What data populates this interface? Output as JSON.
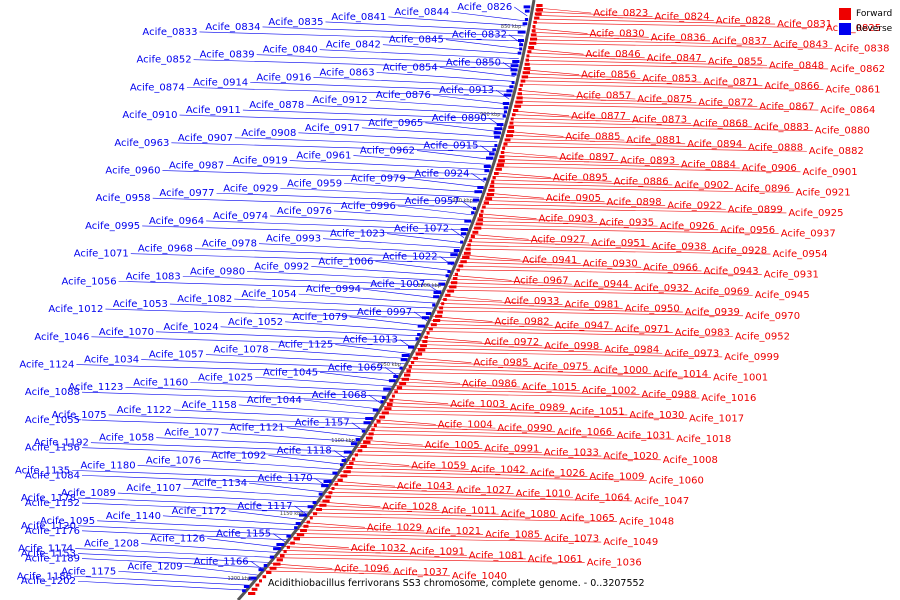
{
  "legend": {
    "forward_label": "Forward",
    "reverse_label": "Reverse",
    "forward_color": "#ee0000",
    "reverse_color": "#0000ee"
  },
  "caption": "Acidithiobacillus ferrivorans SS3 chromosome, complete genome. - 0..3207552",
  "ticks": [
    "850 kbp",
    "900 kbp",
    "950 kbp",
    "1000 kbp",
    "1050 kbp",
    "1100 kbp",
    "1150 kbp",
    "1200 kbp"
  ],
  "reverse_labels": [
    "Acife_0826",
    "Acife_0844",
    "Acife_0841",
    "Acife_0835",
    "Acife_0834",
    "Acife_0833",
    "Acife_0832",
    "Acife_0845",
    "Acife_0842",
    "Acife_0840",
    "Acife_0839",
    "Acife_0852",
    "Acife_0850",
    "Acife_0854",
    "Acife_0863",
    "Acife_0916",
    "Acife_0914",
    "Acife_0874",
    "Acife_0913",
    "Acife_0876",
    "Acife_0912",
    "Acife_0878",
    "Acife_0911",
    "Acife_0910",
    "Acife_0890",
    "Acife_0965",
    "Acife_0917",
    "Acife_0908",
    "Acife_0907",
    "Acife_0963",
    "Acife_0915",
    "Acife_0962",
    "Acife_0961",
    "Acife_0919",
    "Acife_0987",
    "Acife_0960",
    "Acife_0924",
    "Acife_0979",
    "Acife_0959",
    "Acife_0929",
    "Acife_0977",
    "Acife_0958",
    "Acife_0957",
    "Acife_0996",
    "Acife_0976",
    "Acife_0974",
    "Acife_0964",
    "Acife_0995",
    "Acife_1072",
    "Acife_1023",
    "Acife_0993",
    "Acife_0978",
    "Acife_0968",
    "Acife_1071",
    "Acife_1022",
    "Acife_1006",
    "Acife_0992",
    "Acife_0980",
    "Acife_1083",
    "Acife_1056",
    "Acife_1007",
    "Acife_0994",
    "Acife_1054",
    "Acife_1082",
    "Acife_1053",
    "Acife_1012",
    "Acife_0997",
    "Acife_1079",
    "Acife_1052",
    "Acife_1024",
    "Acife_1070",
    "Acife_1046",
    "Acife_1013",
    "Acife_1125",
    "Acife_1078",
    "Acife_1057",
    "Acife_1034",
    "Acife_1124",
    "Acife_1069",
    "Acife_1045",
    "Acife_1025",
    "Acife_1160",
    "Acife_1123",
    "Acife_1088",
    "Acife_1068",
    "Acife_1044",
    "Acife_1158",
    "Acife_1122",
    "Acife_1075",
    "Acife_1055",
    "Acife_1157",
    "Acife_1121",
    "Acife_1077",
    "Acife_1058",
    "Acife_1192",
    "Acife_1156",
    "Acife_1118",
    "Acife_1092",
    "Acife_1076",
    "Acife_1180",
    "Acife_1135",
    "Acife_1084",
    "Acife_1170",
    "Acife_1134",
    "Acife_1107",
    "Acife_1089",
    "Acife_1178",
    "Acife_1152",
    "Acife_1117",
    "Acife_1172",
    "Acife_1140",
    "Acife_1095",
    "Acife_1120",
    "Acife_1176",
    "Acife_1155",
    "Acife_1126",
    "Acife_1208",
    "Acife_1174",
    "Acife_1153",
    "Acife_1189",
    "Acife_1166",
    "Acife_1209",
    "Acife_1175",
    "Acife_1186",
    "Acife_1202"
  ],
  "forward_labels": [
    "Acife_0823",
    "Acife_0824",
    "Acife_0828",
    "Acife_0831",
    "Acife_0825",
    "Acife_0830",
    "Acife_0836",
    "Acife_0837",
    "Acife_0843",
    "Acife_0838",
    "Acife_0846",
    "Acife_0847",
    "Acife_0855",
    "Acife_0848",
    "Acife_0862",
    "Acife_0856",
    "Acife_0853",
    "Acife_0871",
    "Acife_0866",
    "Acife_0861",
    "Acife_0857",
    "Acife_0875",
    "Acife_0872",
    "Acife_0867",
    "Acife_0864",
    "Acife_0877",
    "Acife_0873",
    "Acife_0868",
    "Acife_0883",
    "Acife_0880",
    "Acife_0885",
    "Acife_0881",
    "Acife_0894",
    "Acife_0888",
    "Acife_0882",
    "Acife_0897",
    "Acife_0893",
    "Acife_0884",
    "Acife_0906",
    "Acife_0901",
    "Acife_0895",
    "Acife_0886",
    "Acife_0902",
    "Acife_0896",
    "Acife_0921",
    "Acife_0905",
    "Acife_0898",
    "Acife_0922",
    "Acife_0899",
    "Acife_0925",
    "Acife_0903",
    "Acife_0935",
    "Acife_0926",
    "Acife_0956",
    "Acife_0937",
    "Acife_0927",
    "Acife_0951",
    "Acife_0938",
    "Acife_0928",
    "Acife_0954",
    "Acife_0941",
    "Acife_0930",
    "Acife_0966",
    "Acife_0943",
    "Acife_0931",
    "Acife_0967",
    "Acife_0944",
    "Acife_0932",
    "Acife_0969",
    "Acife_0945",
    "Acife_0933",
    "Acife_0981",
    "Acife_0950",
    "Acife_0939",
    "Acife_0970",
    "Acife_0982",
    "Acife_0947",
    "Acife_0971",
    "Acife_0983",
    "Acife_0952",
    "Acife_0972",
    "Acife_0998",
    "Acife_0984",
    "Acife_0973",
    "Acife_0999",
    "Acife_0985",
    "Acife_0975",
    "Acife_1000",
    "Acife_1014",
    "Acife_1001",
    "Acife_0986",
    "Acife_1015",
    "Acife_1002",
    "Acife_0988",
    "Acife_1016",
    "Acife_1003",
    "Acife_0989",
    "Acife_1051",
    "Acife_1030",
    "Acife_1017",
    "Acife_1004",
    "Acife_0990",
    "Acife_1066",
    "Acife_1031",
    "Acife_1018",
    "Acife_1005",
    "Acife_0991",
    "Acife_1033",
    "Acife_1020",
    "Acife_1008",
    "Acife_1059",
    "Acife_1042",
    "Acife_1026",
    "Acife_1009",
    "Acife_1060",
    "Acife_1043",
    "Acife_1027",
    "Acife_1010",
    "Acife_1064",
    "Acife_1047",
    "Acife_1028",
    "Acife_1011",
    "Acife_1080",
    "Acife_1065",
    "Acife_1048",
    "Acife_1029",
    "Acife_1021",
    "Acife_1085",
    "Acife_1073",
    "Acife_1049",
    "Acife_1032",
    "Acife_1091",
    "Acife_1081",
    "Acife_1061",
    "Acife_1036",
    "Acife_1096",
    "Acife_1037",
    "Acife_1040"
  ]
}
